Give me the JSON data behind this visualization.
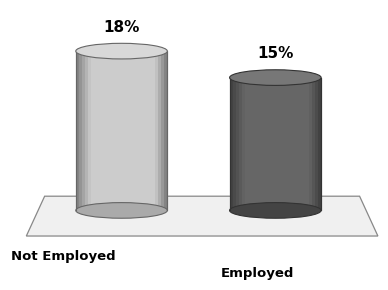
{
  "categories": [
    "Not Employed",
    "Employed"
  ],
  "values": [
    18,
    15
  ],
  "labels": [
    "18%",
    "15%"
  ],
  "cyl1_face": "#cccccc",
  "cyl1_side": "#aaaaaa",
  "cyl1_top": "#d8d8d8",
  "cyl1_edge": "#666666",
  "cyl2_face": "#666666",
  "cyl2_side": "#444444",
  "cyl2_top": "#777777",
  "cyl2_edge": "#333333",
  "background_color": "#ffffff",
  "floor_color": "#f0f0f0",
  "floor_edge": "#888888",
  "label_fontsize": 11,
  "cat_fontsize": 9.5,
  "figsize": [
    3.88,
    2.9
  ],
  "dpi": 100
}
